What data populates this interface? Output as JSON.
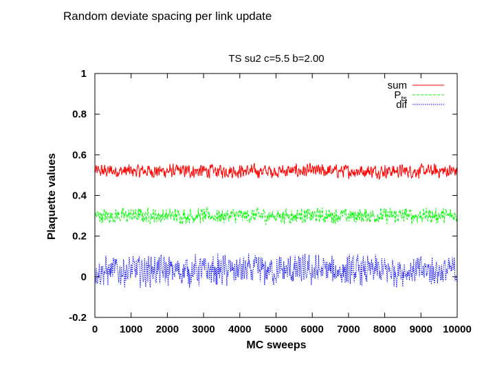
{
  "page": {
    "title": "Random deviate spacing per link update"
  },
  "chart_data": {
    "type": "line",
    "title": "TS su2 c=5.5 b=2.00",
    "xlabel": "MC sweeps",
    "ylabel": "Plaquette values",
    "xlim": [
      0,
      10000
    ],
    "ylim": [
      -0.2,
      1
    ],
    "x_ticks": [
      "0",
      "1000",
      "2000",
      "3000",
      "4000",
      "5000",
      "6000",
      "7000",
      "8000",
      "9000",
      "10000"
    ],
    "y_ticks": [
      "-0.2",
      "0",
      "0.2",
      "0.4",
      "0.6",
      "0.8",
      "1"
    ],
    "legend_position": "top-right",
    "series": [
      {
        "name": "sum",
        "name_sub": "",
        "color": "#ff0000",
        "dash": "solid",
        "mean": 0.52,
        "amplitude": 0.04,
        "x_start": 0,
        "x_end": 10000,
        "n_points": 1000
      },
      {
        "name": "P",
        "name_sub": "ts",
        "color": "#00ff00",
        "dash": "dashed",
        "mean": 0.3,
        "amplitude": 0.045,
        "x_start": 0,
        "x_end": 10000,
        "n_points": 1000
      },
      {
        "name": "dif",
        "name_sub": "",
        "color": "#0000ff",
        "dash": "dotted",
        "mean": 0.03,
        "amplitude": 0.09,
        "x_start": 0,
        "x_end": 10000,
        "n_points": 1000
      }
    ]
  }
}
